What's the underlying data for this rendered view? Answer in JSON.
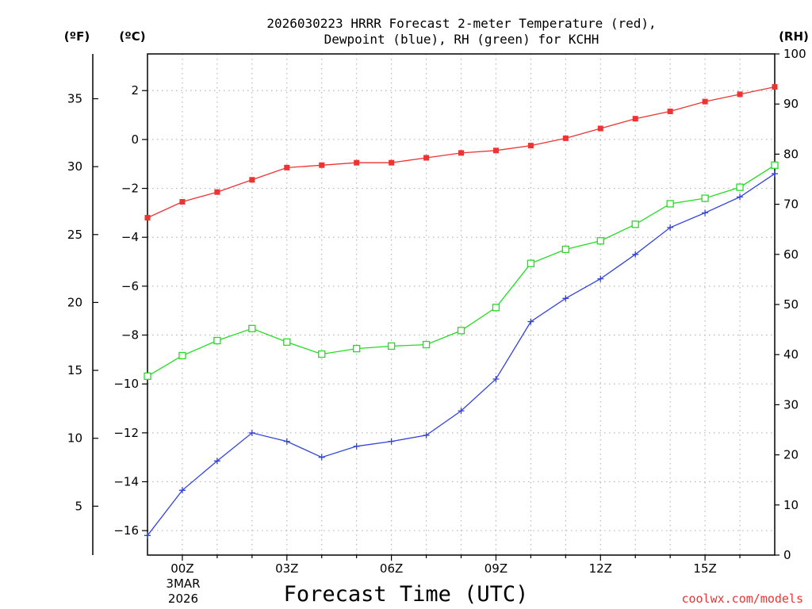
{
  "chart_data": {
    "type": "line",
    "title_lines": [
      "2026030223 HRRR Forecast 2-meter Temperature (red),",
      "Dewpoint (blue), RH (green) for KCHH"
    ],
    "xlabel": "Forecast Time (UTC)",
    "x_ticks": [
      "00Z",
      "03Z",
      "06Z",
      "09Z",
      "12Z",
      "15Z"
    ],
    "x_tick_hours": [
      0,
      3,
      6,
      9,
      12,
      15
    ],
    "x_date_lines": [
      "3MAR",
      "2026"
    ],
    "xlim_hours": [
      -1,
      17
    ],
    "x_hours": [
      -1,
      0,
      1,
      2,
      3,
      4,
      5,
      6,
      7,
      8,
      9,
      10,
      11,
      12,
      13,
      14,
      15,
      16,
      17
    ],
    "left_axis_f": {
      "label": "(ºF)",
      "ticks": [
        5,
        10,
        15,
        20,
        25,
        30,
        35
      ]
    },
    "left_axis_c": {
      "label": "(ºC)",
      "ticks": [
        -16,
        -14,
        -12,
        -10,
        -8,
        -6,
        -4,
        -2,
        0,
        2
      ],
      "ylim": [
        -17,
        3.5
      ]
    },
    "right_axis_rh": {
      "label": "(RH)",
      "ticks": [
        0,
        10,
        20,
        30,
        40,
        50,
        60,
        70,
        80,
        90,
        100
      ],
      "ylim": [
        0,
        100
      ]
    },
    "series": [
      {
        "name": "Temperature",
        "axis": "C",
        "marker": "square-filled",
        "color": "#ee3333",
        "values": [
          -3.2,
          -2.55,
          -2.15,
          -1.65,
          -1.15,
          -1.05,
          -0.95,
          -0.95,
          -0.75,
          -0.55,
          -0.45,
          -0.25,
          0.05,
          0.45,
          0.85,
          1.15,
          1.55,
          1.85,
          2.15
        ]
      },
      {
        "name": "Dewpoint",
        "axis": "C",
        "marker": "plus",
        "color": "#3344dd",
        "values": [
          -16.2,
          -14.35,
          -13.15,
          -12.0,
          -12.35,
          -13.0,
          -12.55,
          -12.35,
          -12.1,
          -11.1,
          -9.8,
          -7.45,
          -6.5,
          -5.7,
          -4.7,
          -3.6,
          -3.0,
          -2.35,
          -1.4
        ]
      },
      {
        "name": "RH",
        "axis": "RH",
        "marker": "square-open",
        "color": "#22dd22",
        "values": [
          35.7,
          39.8,
          42.8,
          45.2,
          42.5,
          40.1,
          41.2,
          41.7,
          42.0,
          44.8,
          49.4,
          58.2,
          61.0,
          62.7,
          66.0,
          70.1,
          71.2,
          73.4,
          77.8
        ]
      }
    ]
  },
  "credit": "coolwx.com/models",
  "colors": {
    "credit": "#ee3333",
    "grid": "#b8b8b8"
  }
}
